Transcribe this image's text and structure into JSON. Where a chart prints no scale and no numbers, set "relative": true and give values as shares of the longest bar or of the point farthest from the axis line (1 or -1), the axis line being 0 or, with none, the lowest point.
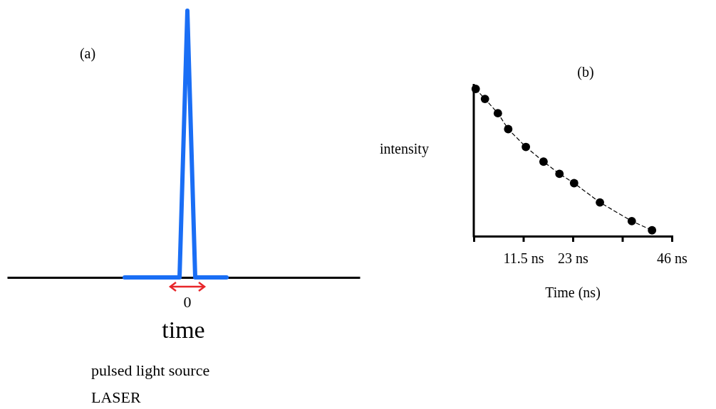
{
  "chart_data": [
    {
      "type": "line",
      "title": "(a)",
      "xlabel": "time",
      "annotations": [
        "0",
        "pulsed light source",
        "LASER"
      ],
      "relative": true,
      "categories": [
        null,
        null,
        null,
        null,
        null,
        null,
        null,
        null,
        null,
        null,
        null,
        null,
        null,
        null,
        null,
        null,
        null,
        null,
        null,
        null,
        null,
        null,
        null,
        null,
        null,
        null,
        null,
        null,
        null,
        null,
        null,
        null,
        null,
        null,
        null,
        null,
        null,
        null,
        null,
        null,
        null,
        null,
        null,
        null,
        null,
        null
      ],
      "series": [
        {
          "color": "#1a6ef5",
          "values": [
            null,
            null,
            null,
            null,
            null,
            null,
            null,
            null,
            null,
            null,
            null,
            null,
            null,
            null,
            null,
            0,
            0,
            0,
            0,
            0,
            0,
            0,
            0,
            1,
            0,
            0,
            0,
            0,
            0,
            null,
            null,
            null,
            null,
            null,
            null,
            null,
            null,
            null,
            null,
            null,
            null,
            null,
            null,
            null,
            null,
            null
          ]
        }
      ]
    },
    {
      "type": "line",
      "title": "(b)",
      "xlabel": "Time (ns)",
      "ylabel": "intensity",
      "relative": true,
      "x": [
        0.45,
        2.6,
        5.6,
        8.0,
        12.1,
        16.2,
        19.9,
        23.3,
        29.3,
        36.7,
        41.4
      ],
      "xlim": [
        0,
        46
      ],
      "xticks": [
        {
          "value": 11.5,
          "label": "11.5 ns"
        },
        {
          "value": 23,
          "label": "23 ns"
        },
        {
          "value": 34.5,
          "label": null
        },
        {
          "value": 46,
          "label": "46 ns"
        }
      ],
      "marker": "circle",
      "line_style": "dashed",
      "series": [
        {
          "color": "#000000",
          "values": [
            1,
            0.932,
            0.835,
            0.727,
            0.606,
            0.506,
            0.423,
            0.36,
            0.229,
            0.102,
            0.04
          ]
        }
      ]
    }
  ]
}
